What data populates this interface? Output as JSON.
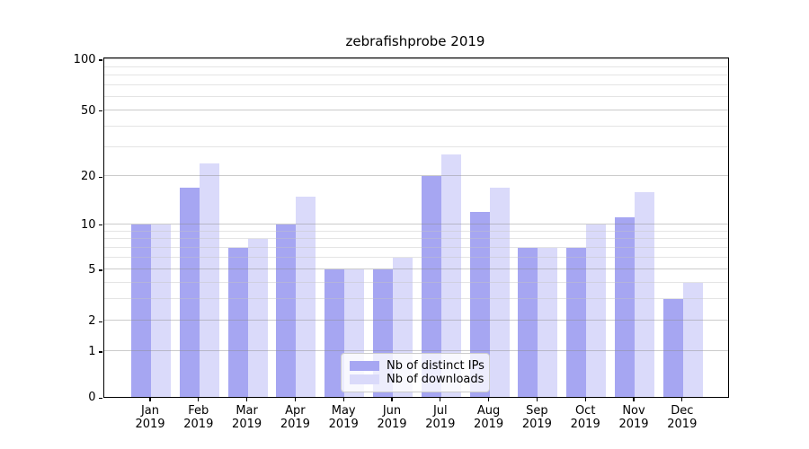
{
  "chart_data": {
    "type": "bar",
    "title": "zebrafishprobe 2019",
    "categories": [
      "Jan 2019",
      "Feb 2019",
      "Mar 2019",
      "Apr 2019",
      "May 2019",
      "Jun 2019",
      "Jul 2019",
      "Aug 2019",
      "Sep 2019",
      "Oct 2019",
      "Nov 2019",
      "Dec 2019"
    ],
    "series": [
      {
        "name": "Nb of distinct IPs",
        "color": "#a6a6f2",
        "values": [
          10,
          17,
          7,
          10,
          5,
          5,
          20,
          12,
          7,
          7,
          11,
          3
        ]
      },
      {
        "name": "Nb of downloads",
        "color": "#dadafa",
        "values": [
          10,
          24,
          8,
          15,
          5,
          6,
          27,
          17,
          7,
          10,
          16,
          4
        ]
      }
    ],
    "yscale": "log1p",
    "y_tick_values": [
      100,
      50,
      20,
      10,
      5,
      2,
      1,
      0
    ],
    "y_minor_gridline_values": [
      3,
      4,
      6,
      7,
      8,
      9,
      30,
      40,
      60,
      70,
      80,
      90
    ],
    "ylim": [
      0,
      110
    ],
    "grid": true,
    "legend_position": "lower center",
    "colors": {
      "grid_major": "#cbcbcb",
      "grid_minor": "#e6e6e6",
      "spine": "#000000",
      "background": "#ffffff"
    }
  }
}
